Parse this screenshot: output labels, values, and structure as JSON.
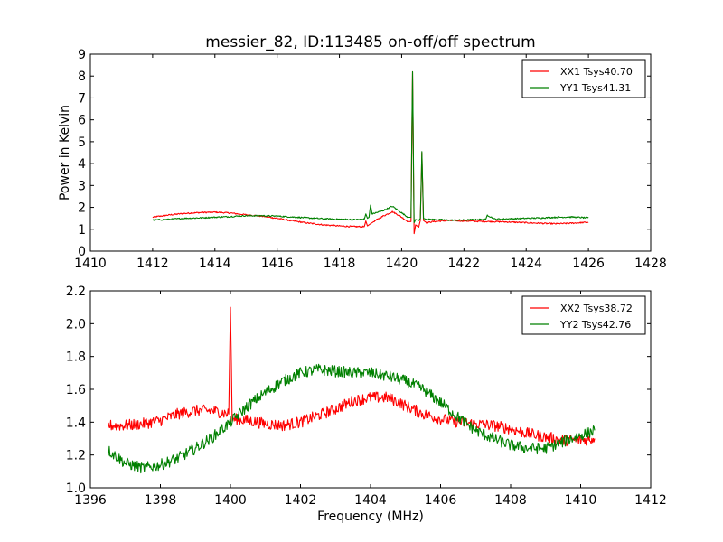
{
  "chart_data": [
    {
      "type": "line",
      "title": "messier_82, ID:113485 on-off/off spectrum",
      "xlabel": "",
      "ylabel": "Power in Kelvin",
      "xlim": [
        1410,
        1428
      ],
      "ylim": [
        0,
        9
      ],
      "xticks": [
        "1410",
        "1412",
        "1414",
        "1416",
        "1418",
        "1420",
        "1422",
        "1424",
        "1426",
        "1428"
      ],
      "yticks": [
        "0",
        "1",
        "2",
        "3",
        "4",
        "5",
        "6",
        "7",
        "8",
        "9"
      ],
      "legend_position": "top-right",
      "grid": false,
      "series": [
        {
          "name": "XX1 Tsys40.70",
          "color": "#ff0000",
          "noise": 0.03,
          "x": [
            1412,
            1412.5,
            1413,
            1413.5,
            1414,
            1414.5,
            1415,
            1415.5,
            1416,
            1416.5,
            1417,
            1417.5,
            1418,
            1418.5,
            1418.8,
            1418.85,
            1418.9,
            1419.1,
            1419.4,
            1419.7,
            1419.9,
            1420.2,
            1420.3,
            1420.35,
            1420.4,
            1420.45,
            1420.55,
            1420.6,
            1420.65,
            1420.7,
            1420.8,
            1421,
            1421.5,
            1422,
            1422.5,
            1423,
            1423.5,
            1424,
            1424.5,
            1425,
            1425.5,
            1426
          ],
          "y": [
            1.55,
            1.65,
            1.72,
            1.76,
            1.78,
            1.74,
            1.66,
            1.6,
            1.5,
            1.38,
            1.28,
            1.2,
            1.15,
            1.12,
            1.12,
            1.38,
            1.15,
            1.35,
            1.6,
            1.8,
            1.65,
            1.35,
            1.35,
            8.2,
            0.8,
            1.2,
            1.1,
            1.4,
            4.5,
            1.4,
            1.3,
            1.35,
            1.4,
            1.38,
            1.36,
            1.35,
            1.33,
            1.3,
            1.27,
            1.25,
            1.28,
            1.32
          ]
        },
        {
          "name": "YY1 Tsys41.31",
          "color": "#008000",
          "noise": 0.03,
          "x": [
            1412,
            1412.5,
            1413,
            1413.5,
            1414,
            1414.5,
            1415,
            1415.5,
            1416,
            1416.5,
            1417,
            1417.5,
            1418,
            1418.5,
            1418.8,
            1418.85,
            1418.9,
            1418.95,
            1419.0,
            1419.05,
            1419.4,
            1419.7,
            1419.9,
            1420.2,
            1420.3,
            1420.35,
            1420.4,
            1420.45,
            1420.55,
            1420.6,
            1420.65,
            1420.7,
            1420.8,
            1421,
            1421.5,
            1422,
            1422.5,
            1422.7,
            1422.75,
            1423,
            1423.5,
            1424,
            1424.5,
            1425,
            1425.5,
            1426
          ],
          "y": [
            1.42,
            1.45,
            1.5,
            1.52,
            1.55,
            1.58,
            1.62,
            1.62,
            1.6,
            1.56,
            1.52,
            1.48,
            1.46,
            1.44,
            1.46,
            1.7,
            1.5,
            1.55,
            2.1,
            1.7,
            1.85,
            2.05,
            1.85,
            1.55,
            1.55,
            8.2,
            1.3,
            1.45,
            1.4,
            1.5,
            4.55,
            1.5,
            1.45,
            1.45,
            1.42,
            1.42,
            1.45,
            1.45,
            1.65,
            1.46,
            1.48,
            1.5,
            1.52,
            1.55,
            1.56,
            1.52
          ]
        }
      ]
    },
    {
      "type": "line",
      "title": "",
      "xlabel": "Frequency (MHz)",
      "ylabel": "",
      "xlim": [
        1396,
        1412
      ],
      "ylim": [
        1.0,
        2.2
      ],
      "xticks": [
        "1396",
        "1398",
        "1400",
        "1402",
        "1404",
        "1406",
        "1408",
        "1410",
        "1412"
      ],
      "yticks": [
        "1.0",
        "1.2",
        "1.4",
        "1.6",
        "1.8",
        "2.0",
        "2.2"
      ],
      "legend_position": "top-right",
      "grid": false,
      "series": [
        {
          "name": "XX2 Tsys38.72",
          "color": "#ff0000",
          "noise": 0.035,
          "x": [
            1396.5,
            1397,
            1397.5,
            1398,
            1398.5,
            1399,
            1399.5,
            1399.95,
            1400.0,
            1400.05,
            1400.5,
            1401,
            1401.5,
            1402,
            1402.5,
            1403,
            1403.5,
            1404,
            1404.5,
            1405,
            1405.5,
            1406,
            1406.5,
            1407,
            1407.5,
            1408,
            1408.5,
            1409,
            1409.5,
            1410,
            1410.4
          ],
          "y": [
            1.38,
            1.38,
            1.39,
            1.41,
            1.45,
            1.47,
            1.47,
            1.45,
            2.1,
            1.42,
            1.41,
            1.39,
            1.38,
            1.4,
            1.44,
            1.48,
            1.53,
            1.55,
            1.55,
            1.5,
            1.45,
            1.42,
            1.4,
            1.39,
            1.38,
            1.36,
            1.33,
            1.31,
            1.29,
            1.29,
            1.3
          ]
        },
        {
          "name": "YY2 Tsys42.76",
          "color": "#008000",
          "noise": 0.035,
          "x": [
            1396.5,
            1397,
            1397.5,
            1398,
            1398.5,
            1399,
            1399.5,
            1400,
            1400.5,
            1401,
            1401.5,
            1402,
            1402.5,
            1403,
            1403.5,
            1404,
            1404.5,
            1405,
            1405.5,
            1406,
            1406.5,
            1407,
            1407.5,
            1408,
            1408.5,
            1409,
            1409.5,
            1410,
            1410.4
          ],
          "y": [
            1.23,
            1.15,
            1.12,
            1.14,
            1.18,
            1.24,
            1.31,
            1.4,
            1.5,
            1.58,
            1.65,
            1.7,
            1.72,
            1.71,
            1.7,
            1.7,
            1.68,
            1.65,
            1.6,
            1.52,
            1.43,
            1.35,
            1.3,
            1.26,
            1.24,
            1.24,
            1.28,
            1.32,
            1.35
          ]
        }
      ]
    }
  ]
}
